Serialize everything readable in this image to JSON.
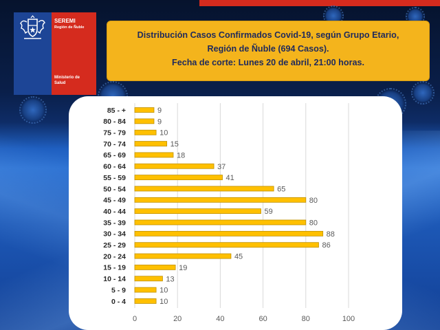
{
  "slide": {
    "title_lines": [
      "Distribución Casos Confirmados Covid-19, según Grupo Etario,",
      "Región de Ñuble (694 Casos).",
      "Fecha de corte: Lunes 20 de abril, 21:00 horas."
    ],
    "logo": {
      "org": "SEREMI",
      "region": "Región de Ñuble",
      "ministry_line1": "Ministerio de",
      "ministry_line2": "Salud"
    },
    "colors": {
      "title_box": "#f4b41c",
      "title_text": "#1f2a5c",
      "logo_blue": "#1d4596",
      "logo_red": "#d52b1e",
      "bar": "#ffc000",
      "bar_outline": "#bf9000"
    }
  },
  "chart_data": {
    "type": "bar",
    "horizontal": true,
    "categories": [
      "85 - +",
      "80 - 84",
      "75 - 79",
      "70 - 74",
      "65 - 69",
      "60 - 64",
      "55 - 59",
      "50 - 54",
      "45 - 49",
      "40 - 44",
      "35 - 39",
      "30 - 34",
      "25 - 29",
      "20 - 24",
      "15 - 19",
      "10 - 14",
      "5 - 9",
      "0 - 4"
    ],
    "values": [
      9,
      9,
      10,
      15,
      18,
      37,
      41,
      65,
      80,
      59,
      80,
      88,
      86,
      45,
      19,
      13,
      10,
      10
    ],
    "xlim": [
      0,
      100
    ],
    "xticks": [
      0,
      20,
      40,
      60,
      80,
      100
    ],
    "grid": true,
    "data_labels": true
  }
}
